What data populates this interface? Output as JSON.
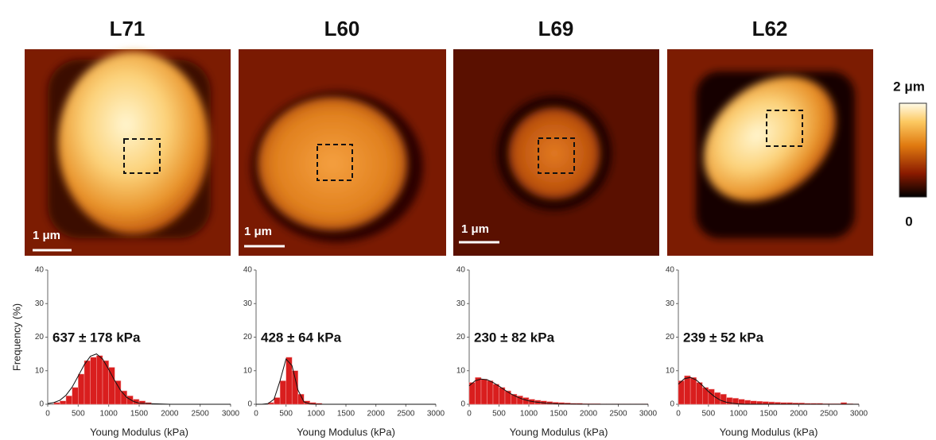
{
  "chart_data": [
    {
      "type": "histogram",
      "title": "L71",
      "annotation": "637 ± 178 kPa",
      "xlabel": "Young Modulus (kPa)",
      "ylabel": "Frequency (%)",
      "bins": [
        0,
        100,
        200,
        300,
        400,
        500,
        600,
        700,
        800,
        900,
        1000,
        1100,
        1200,
        1300,
        1400,
        1500,
        1600,
        1700,
        1800,
        1900,
        2000,
        2100,
        2200,
        2300,
        2400,
        2500,
        2600,
        2700,
        2800,
        2900,
        3000
      ],
      "values": [
        0,
        0.5,
        1,
        2.5,
        5,
        9,
        13,
        14,
        14.5,
        13,
        11,
        7,
        4,
        2.5,
        1.5,
        1,
        0.5,
        0,
        0,
        0,
        0,
        0,
        0,
        0,
        0,
        0,
        0,
        0,
        0,
        0
      ],
      "color": "#d91e1e",
      "fit": {
        "x": [
          0,
          100,
          200,
          300,
          400,
          500,
          600,
          700,
          800,
          900,
          1000,
          1100,
          1200,
          1300,
          1400,
          1500,
          2000,
          3000
        ],
        "values": [
          0.2,
          0.5,
          1.2,
          2.7,
          5.1,
          8.4,
          11.8,
          14.3,
          15,
          13.5,
          10.4,
          7,
          4,
          2,
          0.9,
          0.3,
          0,
          0
        ]
      },
      "xlim": [
        0,
        3000
      ],
      "xticks": [
        0,
        500,
        1000,
        1500,
        2000,
        2500,
        3000
      ],
      "ylim": [
        0,
        40
      ],
      "yticks": [
        0,
        10,
        20,
        30,
        40
      ]
    },
    {
      "type": "histogram",
      "title": "L60",
      "annotation": "428 ± 64 kPa",
      "xlabel": "Young Modulus (kPa)",
      "bins": [
        0,
        100,
        200,
        300,
        400,
        500,
        600,
        700,
        800,
        900,
        1000,
        1100,
        1200,
        1300,
        1400,
        1500,
        1600,
        1700,
        1800,
        1900,
        2000,
        2100,
        2200,
        2300,
        2400,
        2500,
        2600,
        2700,
        2800,
        2900,
        3000
      ],
      "values": [
        0,
        0,
        0.5,
        2,
        7,
        14,
        10,
        3,
        1,
        0.5,
        0.3,
        0,
        0,
        0,
        0,
        0,
        0,
        0,
        0,
        0,
        0,
        0,
        0,
        0,
        0,
        0,
        0,
        0,
        0,
        0
      ],
      "color": "#d91e1e",
      "fit": {
        "x": [
          0,
          100,
          200,
          300,
          400,
          500,
          600,
          700,
          800,
          900,
          1000,
          1100,
          1200,
          1300,
          1400,
          1500,
          2000,
          3000
        ],
        "values": [
          0,
          0,
          0.2,
          1.5,
          7,
          13.5,
          11.5,
          4.2,
          0.7,
          0.1,
          0,
          0,
          0,
          0,
          0,
          0,
          0,
          0
        ]
      },
      "xlim": [
        0,
        3000
      ],
      "xticks": [
        0,
        500,
        1000,
        1500,
        2000,
        2500,
        3000
      ],
      "ylim": [
        0,
        40
      ],
      "yticks": [
        0,
        10,
        20,
        30,
        40
      ]
    },
    {
      "type": "histogram",
      "title": "L69",
      "annotation": "230 ± 82 kPa",
      "xlabel": "Young Modulus (kPa)",
      "bins": [
        0,
        100,
        200,
        300,
        400,
        500,
        600,
        700,
        800,
        900,
        1000,
        1100,
        1200,
        1300,
        1400,
        1500,
        1600,
        1700,
        1800,
        1900,
        2000,
        2100,
        2200,
        2300,
        2400,
        2500,
        2600,
        2700,
        2800,
        2900,
        3000
      ],
      "values": [
        6.5,
        8,
        7.5,
        7,
        6,
        5,
        4,
        3,
        2.5,
        2,
        1.5,
        1.2,
        1,
        0.8,
        0.6,
        0.5,
        0.4,
        0.3,
        0.3,
        0.2,
        0.2,
        0.2,
        0.1,
        0.1,
        0.1,
        0.1,
        0.1,
        0.1,
        0.1,
        0.1
      ],
      "color": "#d91e1e",
      "fit": {
        "x": [
          0,
          100,
          200,
          300,
          400,
          500,
          600,
          700,
          800,
          900,
          1000,
          1100,
          1200,
          1300,
          1400,
          1500,
          2000,
          3000
        ],
        "values": [
          5.5,
          7,
          7.5,
          7.3,
          6.5,
          5.4,
          4.2,
          3.1,
          2.2,
          1.5,
          1,
          0.7,
          0.5,
          0.3,
          0.2,
          0.1,
          0,
          0
        ]
      },
      "xlim": [
        0,
        3000
      ],
      "xticks": [
        0,
        500,
        1000,
        1500,
        2000,
        2500,
        3000
      ],
      "ylim": [
        0,
        40
      ],
      "yticks": [
        0,
        10,
        20,
        30,
        40
      ]
    },
    {
      "type": "histogram",
      "title": "L62",
      "annotation": "239 ± 52 kPa",
      "xlabel": "Young Modulus (kPa)",
      "bins": [
        0,
        100,
        200,
        300,
        400,
        500,
        600,
        700,
        800,
        900,
        1000,
        1100,
        1200,
        1300,
        1400,
        1500,
        1600,
        1700,
        1800,
        1900,
        2000,
        2100,
        2200,
        2300,
        2400,
        2500,
        2600,
        2700,
        2800,
        2900,
        3000
      ],
      "values": [
        7,
        8.5,
        8,
        6.5,
        5,
        4.5,
        3.5,
        3,
        2,
        1.8,
        1.5,
        1.2,
        1,
        0.9,
        0.8,
        0.7,
        0.6,
        0.5,
        0.5,
        0.4,
        0.4,
        0.3,
        0.3,
        0.3,
        0.2,
        0.2,
        0.2,
        0.5,
        0.2,
        0.1
      ],
      "color": "#d91e1e",
      "fit": {
        "x": [
          0,
          100,
          200,
          300,
          400,
          500,
          600,
          700,
          800,
          900,
          1000,
          1100,
          1200,
          1300,
          1400,
          1500,
          2000,
          3000
        ],
        "values": [
          6,
          7.6,
          8,
          7.2,
          5.6,
          3.8,
          2.3,
          1.2,
          0.6,
          0.3,
          0.1,
          0,
          0,
          0,
          0,
          0,
          0,
          0
        ]
      },
      "xlim": [
        0,
        3000
      ],
      "xticks": [
        0,
        500,
        1000,
        1500,
        2000,
        2500,
        3000
      ],
      "ylim": [
        0,
        40
      ],
      "yticks": [
        0,
        10,
        20,
        30,
        40
      ]
    }
  ],
  "images": {
    "scale_bars": [
      "1 μm",
      "1 μm",
      "1 μm"
    ],
    "colorbar": {
      "max_label": "2 μm",
      "min_label": "0"
    }
  }
}
